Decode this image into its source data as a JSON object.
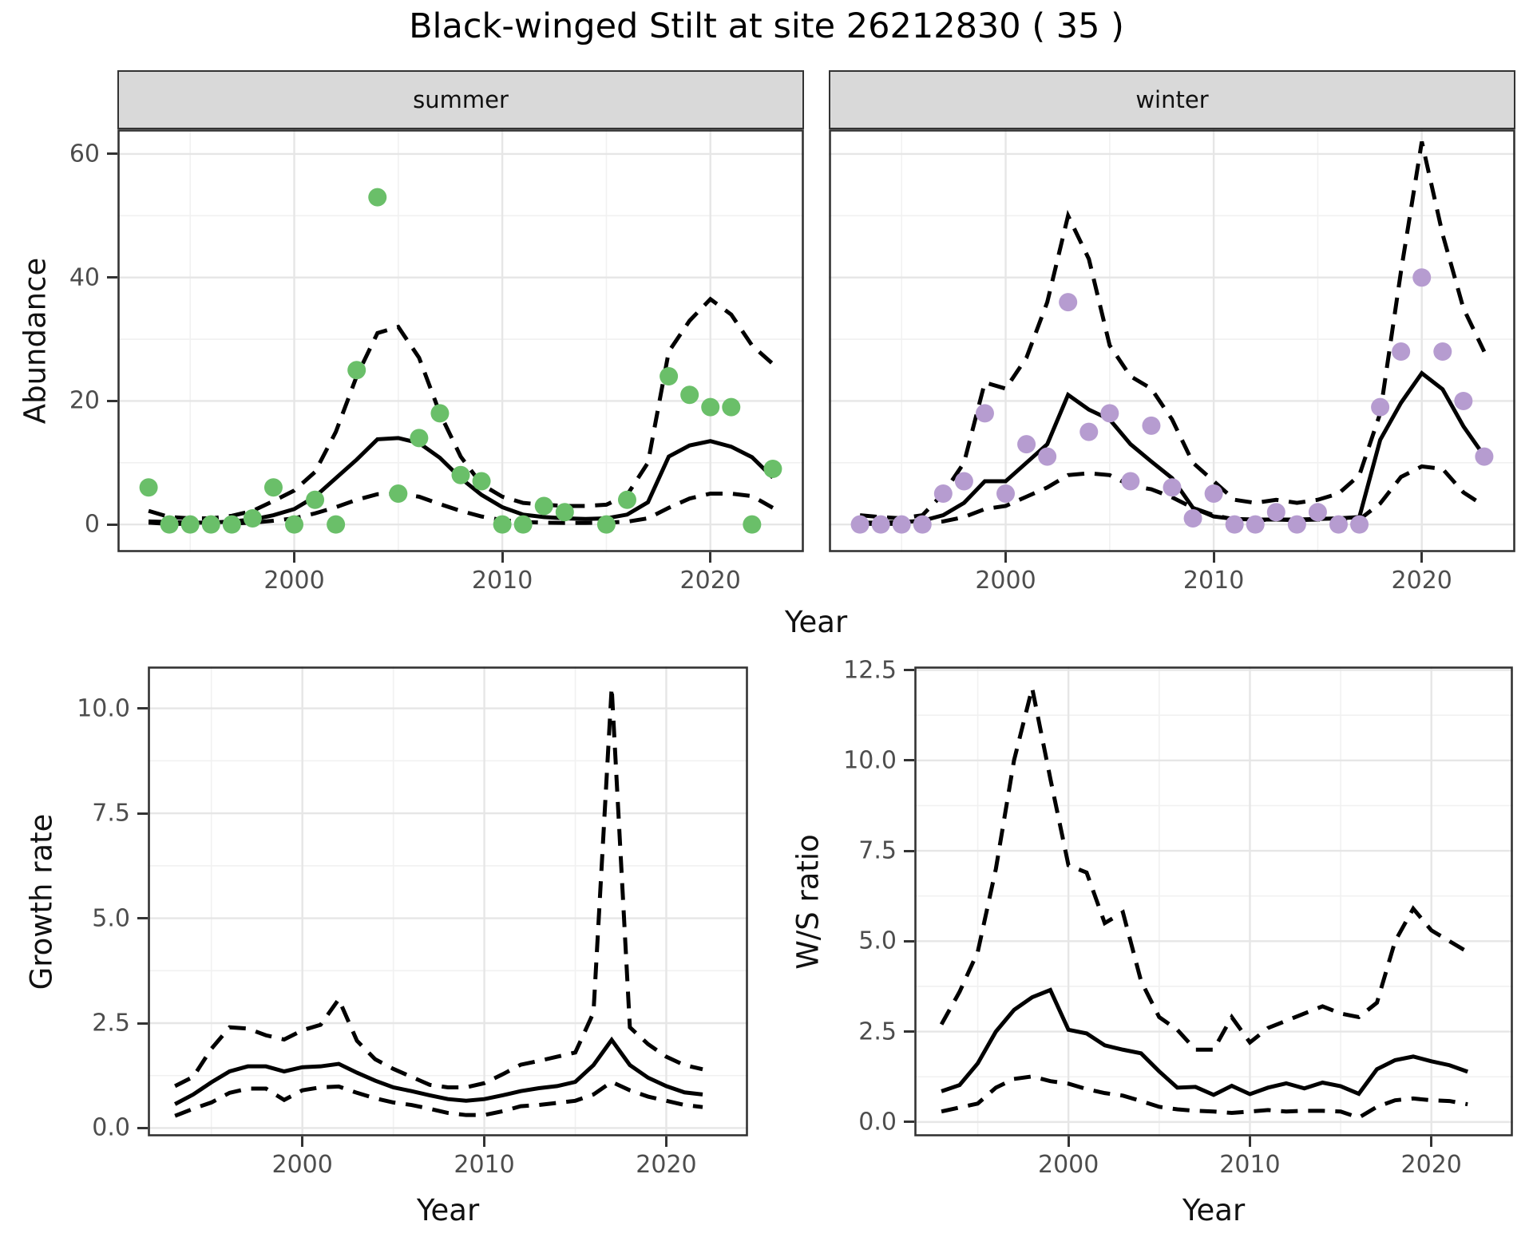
{
  "title": "Black-winged Stilt at site 26212830 ( 35 )",
  "axes": {
    "abundance_label": "Abundance",
    "growth_label": "Growth rate",
    "ws_label": "W/S ratio",
    "year_label": "Year"
  },
  "facets": [
    {
      "label": "summer"
    },
    {
      "label": "winter"
    }
  ],
  "colors": {
    "summer_point": "#6abf69",
    "winter_point": "#b69cd0",
    "line": "#000000",
    "strip_bg": "#d9d9d9",
    "grid_major": "#e6e6e6",
    "grid_minor": "#f1f1f1",
    "axis_text": "#4d4d4d",
    "panel_border": "#333333"
  },
  "chart_data": [
    {
      "id": "summer",
      "type": "scatter",
      "strip_label": "summer",
      "xlabel": "Year",
      "ylabel": "Abundance",
      "xlim": [
        1991.5,
        2024.5
      ],
      "ylim": [
        -4.5,
        64
      ],
      "xticks": [
        2000,
        2010,
        2020
      ],
      "xtick_labels": [
        "2000",
        "2010",
        "2020"
      ],
      "xticks_minor": [
        1995,
        2005,
        2015
      ],
      "yticks": [
        0,
        20,
        40,
        60
      ],
      "ytick_labels": [
        "0",
        "20",
        "40",
        "60"
      ],
      "yticks_minor": [
        10,
        30,
        50
      ],
      "point_color": "#6abf69",
      "x": [
        1993,
        1994,
        1995,
        1996,
        1997,
        1998,
        1999,
        2000,
        2001,
        2002,
        2003,
        2004,
        2005,
        2006,
        2007,
        2008,
        2009,
        2010,
        2011,
        2012,
        2013,
        2014,
        2015,
        2016,
        2017,
        2018,
        2019,
        2020,
        2021,
        2022,
        2023
      ],
      "observed": [
        6,
        0,
        0,
        0,
        0,
        1,
        6,
        0,
        4,
        0,
        25,
        53,
        5,
        14,
        18,
        8,
        7,
        0,
        0,
        3,
        2,
        null,
        0,
        4,
        null,
        24,
        21,
        19,
        19,
        0,
        9
      ],
      "fit": [
        0.5,
        0.4,
        0.3,
        0.3,
        0.5,
        0.8,
        1.5,
        2.5,
        4.5,
        7.5,
        10.5,
        13.8,
        14.0,
        13.2,
        10.8,
        7.5,
        4.8,
        2.8,
        1.6,
        1.2,
        1.0,
        0.9,
        1.0,
        1.6,
        3.6,
        11.0,
        12.8,
        13.5,
        12.6,
        10.9,
        7.6
      ],
      "upper": [
        2.2,
        1.2,
        1.0,
        1.0,
        1.4,
        2.2,
        3.8,
        5.5,
        8.5,
        15,
        24,
        31,
        32,
        27,
        18,
        11,
        6.5,
        4.5,
        3.5,
        3.2,
        3.0,
        3.0,
        3.2,
        4.8,
        10,
        28,
        33,
        36.5,
        34,
        29,
        26
      ],
      "lower": [
        0.3,
        0.1,
        0.1,
        0.1,
        0.15,
        0.3,
        0.6,
        1.0,
        1.8,
        2.8,
        4.0,
        4.9,
        5.0,
        4.5,
        3.3,
        2.2,
        1.3,
        0.7,
        0.4,
        0.3,
        0.25,
        0.25,
        0.3,
        0.45,
        1.0,
        2.7,
        4.2,
        5.0,
        5.0,
        4.6,
        2.7
      ]
    },
    {
      "id": "winter",
      "type": "scatter",
      "strip_label": "winter",
      "xlabel": "Year",
      "ylabel": "Abundance",
      "xlim": [
        1991.5,
        2024.5
      ],
      "ylim": [
        -4.5,
        64
      ],
      "xticks": [
        2000,
        2010,
        2020
      ],
      "xtick_labels": [
        "2000",
        "2010",
        "2020"
      ],
      "xticks_minor": [
        1995,
        2005,
        2015
      ],
      "yticks": [
        0,
        20,
        40,
        60
      ],
      "ytick_labels": [
        "0",
        "20",
        "40",
        "60"
      ],
      "yticks_minor": [
        10,
        30,
        50
      ],
      "point_color": "#b69cd0",
      "x": [
        1993,
        1994,
        1995,
        1996,
        1997,
        1998,
        1999,
        2000,
        2001,
        2002,
        2003,
        2004,
        2005,
        2006,
        2007,
        2008,
        2009,
        2010,
        2011,
        2012,
        2013,
        2014,
        2015,
        2016,
        2017,
        2018,
        2019,
        2020,
        2021,
        2022,
        2023
      ],
      "observed": [
        0,
        0,
        0,
        0,
        5,
        7,
        18,
        5,
        13,
        11,
        36,
        15,
        18,
        7,
        16,
        6,
        1,
        5,
        0,
        0,
        2,
        0,
        2,
        0,
        0,
        19,
        28,
        40,
        28,
        20,
        11
      ],
      "fit": [
        0.3,
        0.3,
        0.4,
        0.6,
        1.5,
        3.5,
        7.0,
        7.0,
        10,
        13,
        21,
        18.6,
        17,
        13,
        10.2,
        7.5,
        2.7,
        1.3,
        0.9,
        0.8,
        0.8,
        0.8,
        0.9,
        1.0,
        1.2,
        13.7,
        19.7,
        24.5,
        21.9,
        15.9,
        11.1
      ],
      "upper": [
        1.5,
        1.2,
        1.0,
        1.5,
        5,
        10,
        23,
        22,
        27,
        36,
        50,
        43,
        29,
        24,
        22,
        17,
        10,
        7,
        4,
        3.5,
        4,
        3.5,
        4,
        5,
        8,
        18,
        41,
        62,
        47,
        35,
        28
      ],
      "lower": [
        0.1,
        0.1,
        0.1,
        0.2,
        0.5,
        1.2,
        2.5,
        3.0,
        4.5,
        6.0,
        8.0,
        8.3,
        8.0,
        6.3,
        5.7,
        4.4,
        2.7,
        1.5,
        0.8,
        0.7,
        0.8,
        0.7,
        0.8,
        0.8,
        0.8,
        3.4,
        7.7,
        9.4,
        9.0,
        5.2,
        3.0
      ]
    },
    {
      "id": "growth",
      "type": "line",
      "strip_label": "",
      "xlabel": "Year",
      "ylabel": "Growth rate",
      "xlim": [
        1991.5,
        2024.5
      ],
      "ylim": [
        -0.2,
        11.0
      ],
      "xticks": [
        2000,
        2010,
        2020
      ],
      "xtick_labels": [
        "2000",
        "2010",
        "2020"
      ],
      "xticks_minor": [
        1995,
        2005,
        2015
      ],
      "yticks": [
        0,
        2.5,
        5,
        7.5,
        10
      ],
      "ytick_labels": [
        "0.0",
        "2.5",
        "5.0",
        "7.5",
        "10.0"
      ],
      "yticks_minor": [
        1.25,
        3.75,
        6.25,
        8.75
      ],
      "point_color": null,
      "x": [
        1993,
        1994,
        1995,
        1996,
        1997,
        1998,
        1999,
        2000,
        2001,
        2002,
        2003,
        2004,
        2005,
        2006,
        2007,
        2008,
        2009,
        2010,
        2011,
        2012,
        2013,
        2014,
        2015,
        2016,
        2017,
        2018,
        2019,
        2020,
        2021,
        2022
      ],
      "observed": null,
      "fit": [
        0.57,
        0.8,
        1.09,
        1.35,
        1.47,
        1.47,
        1.35,
        1.45,
        1.47,
        1.53,
        1.32,
        1.13,
        0.97,
        0.88,
        0.78,
        0.69,
        0.65,
        0.69,
        0.78,
        0.88,
        0.95,
        1.0,
        1.1,
        1.5,
        2.1,
        1.5,
        1.2,
        1.0,
        0.85,
        0.8
      ],
      "upper": [
        1.0,
        1.22,
        1.89,
        2.4,
        2.37,
        2.21,
        2.11,
        2.33,
        2.46,
        3.07,
        2.08,
        1.64,
        1.41,
        1.22,
        1.03,
        0.97,
        0.97,
        1.07,
        1.28,
        1.51,
        1.6,
        1.7,
        1.8,
        2.75,
        10.5,
        2.4,
        2.0,
        1.7,
        1.5,
        1.4
      ],
      "lower": [
        0.29,
        0.46,
        0.61,
        0.84,
        0.94,
        0.94,
        0.67,
        0.9,
        0.97,
        0.99,
        0.84,
        0.71,
        0.61,
        0.55,
        0.46,
        0.36,
        0.31,
        0.31,
        0.4,
        0.52,
        0.55,
        0.6,
        0.65,
        0.8,
        1.1,
        0.9,
        0.75,
        0.65,
        0.55,
        0.5
      ]
    },
    {
      "id": "ws",
      "type": "line",
      "strip_label": "",
      "xlabel": "Year",
      "ylabel": "W/S ratio",
      "xlim": [
        1991.5,
        2024.5
      ],
      "ylim": [
        -0.4,
        12.6
      ],
      "xticks": [
        2000,
        2010,
        2020
      ],
      "xtick_labels": [
        "2000",
        "2010",
        "2020"
      ],
      "xticks_minor": [
        1995,
        2005,
        2015
      ],
      "yticks": [
        0,
        2.5,
        5,
        7.5,
        10,
        12.5
      ],
      "ytick_labels": [
        "0.0",
        "2.5",
        "5.0",
        "7.5",
        "10.0",
        "12.5"
      ],
      "yticks_minor": [
        1.25,
        3.75,
        6.25,
        8.75,
        11.25
      ],
      "point_color": null,
      "x": [
        1993,
        1994,
        1995,
        1996,
        1997,
        1998,
        1999,
        2000,
        2001,
        2002,
        2003,
        2004,
        2005,
        2006,
        2007,
        2008,
        2009,
        2010,
        2011,
        2012,
        2013,
        2014,
        2015,
        2016,
        2017,
        2018,
        2019,
        2020,
        2021,
        2022
      ],
      "observed": null,
      "fit": [
        0.85,
        1.02,
        1.62,
        2.5,
        3.1,
        3.45,
        3.65,
        2.55,
        2.45,
        2.12,
        2.0,
        1.9,
        1.4,
        0.95,
        0.97,
        0.75,
        1.0,
        0.77,
        0.95,
        1.07,
        0.93,
        1.09,
        0.99,
        0.78,
        1.46,
        1.71,
        1.81,
        1.68,
        1.57,
        1.39
      ],
      "upper": [
        2.7,
        3.6,
        4.7,
        7.0,
        10.0,
        12.0,
        9.5,
        7.1,
        6.9,
        5.5,
        5.8,
        3.9,
        2.9,
        2.55,
        2.0,
        2.0,
        2.9,
        2.2,
        2.6,
        2.8,
        3.0,
        3.2,
        3.0,
        2.9,
        3.3,
        5.0,
        5.9,
        5.3,
        5.0,
        4.7
      ],
      "lower": [
        0.29,
        0.4,
        0.51,
        0.95,
        1.19,
        1.26,
        1.13,
        1.06,
        0.91,
        0.8,
        0.73,
        0.58,
        0.42,
        0.35,
        0.31,
        0.29,
        0.25,
        0.29,
        0.33,
        0.29,
        0.31,
        0.31,
        0.29,
        0.12,
        0.42,
        0.6,
        0.65,
        0.6,
        0.58,
        0.49
      ]
    }
  ]
}
